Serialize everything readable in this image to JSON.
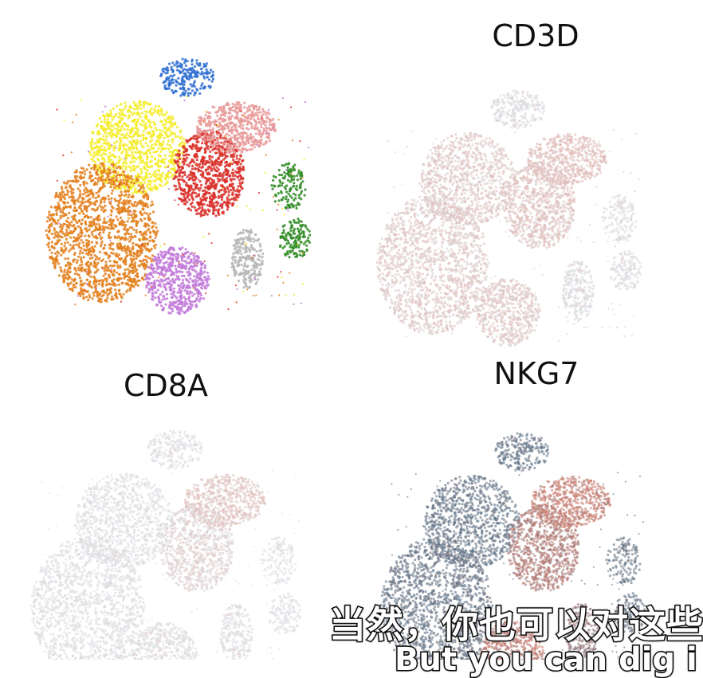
{
  "chart_data": [
    {
      "type": "scatter",
      "panel": "clusters",
      "title": "",
      "clusters": [
        {
          "id": "blue",
          "color": "#2f6fd0"
        },
        {
          "id": "yellow",
          "color": "#f4ec2b"
        },
        {
          "id": "orange",
          "color": "#e3801f"
        },
        {
          "id": "red",
          "color": "#d9302a"
        },
        {
          "id": "pink",
          "color": "#e99a9a"
        },
        {
          "id": "violet",
          "color": "#c27ad9"
        },
        {
          "id": "grey",
          "color": "#b5b5b5"
        },
        {
          "id": "green",
          "color": "#2d8a22"
        }
      ]
    },
    {
      "type": "scatter",
      "panel": "feature",
      "title": "CD3D",
      "low_color": "#d9dde3",
      "high_color": "#e9826d",
      "cluster_expression": {
        "blue": 0.05,
        "yellow": 0.25,
        "orange": 0.25,
        "red": 0.3,
        "pink": 0.35,
        "violet": 0.25,
        "grey": 0.05,
        "green": 0.05
      }
    },
    {
      "type": "scatter",
      "panel": "feature",
      "title": "CD8A",
      "low_color": "#dde1e6",
      "high_color": "#e47c66",
      "cluster_expression": {
        "blue": 0.0,
        "yellow": 0.0,
        "orange": 0.02,
        "red": 0.15,
        "pink": 0.3,
        "violet": 0.05,
        "grey": 0.02,
        "green": 0.0
      }
    },
    {
      "type": "scatter",
      "panel": "feature",
      "title": "NKG7",
      "low_color": "#5c7388",
      "high_color": "#e8806a",
      "cluster_expression": {
        "blue": 0.05,
        "yellow": 0.05,
        "orange": 0.08,
        "red": 0.6,
        "pink": 0.75,
        "violet": 0.7,
        "grey": 0.4,
        "green": 0.1
      }
    }
  ],
  "subtitles": {
    "zh": "当然，你也可以对这些",
    "en": "But you can dig i"
  }
}
